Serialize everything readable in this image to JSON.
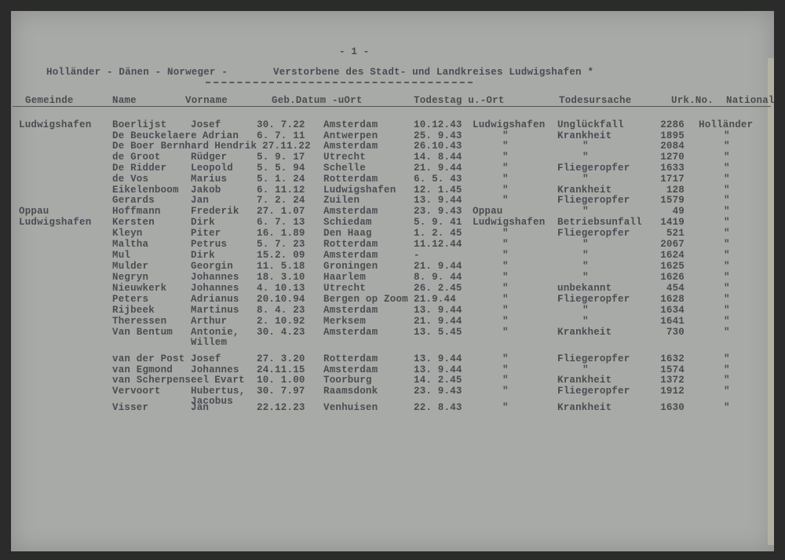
{
  "document": {
    "page_number": "- 1 -",
    "title_left": "Holländer - Dänen - Norweger -",
    "title_right": "Verstorbene des Stadt- und Landkreises Ludwigshafen *",
    "columns": [
      "Gemeinde",
      "Name",
      "Vorname",
      "Geb.Datum -uOrt",
      "Todestag u.-Ort",
      "Todesursache",
      "Urk.No.",
      "National"
    ],
    "rows": [
      {
        "gemeinde": "Ludwigshafen",
        "name": "Boerlijst",
        "vorname": "Josef",
        "geb_datum": "30. 7.22",
        "geb_ort": "Amsterdam",
        "tod_datum": "10.12.43",
        "tod_ort": "Ludwigshafen",
        "ursache": "Unglückfall",
        "urk": "2286",
        "national": "Holländer"
      },
      {
        "gemeinde": "",
        "name": "De Beuckelaere",
        "vorname": "Adrian",
        "geb_datum": "6. 7. 11",
        "geb_ort": "Antwerpen",
        "tod_datum": "25. 9.43",
        "tod_ort": "\"",
        "ursache": "Krankheit",
        "urk": "1895",
        "national": "\""
      },
      {
        "gemeinde": "",
        "name": "De Boer Bernhard",
        "vorname": "Hendrik",
        "geb_datum": "27.11.22",
        "geb_ort": "Amsterdam",
        "tod_datum": "26.10.43",
        "tod_ort": "\"",
        "ursache": "\"",
        "urk": "2084",
        "national": "\""
      },
      {
        "gemeinde": "",
        "name": "de Groot",
        "vorname": "Rüdger",
        "geb_datum": "5. 9. 17",
        "geb_ort": "Utrecht",
        "tod_datum": "14. 8.44",
        "tod_ort": "\"",
        "ursache": "\"",
        "urk": "1270",
        "national": "\""
      },
      {
        "gemeinde": "",
        "name": "De Ridder",
        "vorname": "Leopold",
        "geb_datum": "5. 5. 94",
        "geb_ort": "Schelle",
        "tod_datum": "21. 9.44",
        "tod_ort": "\"",
        "ursache": "Fliegeropfer",
        "urk": "1633",
        "national": "\""
      },
      {
        "gemeinde": "",
        "name": "de Vos",
        "vorname": "Marius",
        "geb_datum": "5. 1. 24",
        "geb_ort": "Rotterdam",
        "tod_datum": "6. 5. 43",
        "tod_ort": "\"",
        "ursache": "\"",
        "urk": "1717",
        "national": "\""
      },
      {
        "gemeinde": "",
        "name": "Eikelenboom",
        "vorname": "Jakob",
        "geb_datum": "6. 11.12",
        "geb_ort": "Ludwigshafen",
        "tod_datum": "12. 1.45",
        "tod_ort": "\"",
        "ursache": "Krankheit",
        "urk": "128",
        "national": "\""
      },
      {
        "gemeinde": "",
        "name": "Gerards",
        "vorname": "Jan",
        "geb_datum": "7. 2. 24",
        "geb_ort": "Zuilen",
        "tod_datum": "13. 9.44",
        "tod_ort": "\"",
        "ursache": "Fliegeropfer",
        "urk": "1579",
        "national": "\""
      },
      {
        "gemeinde": "Oppau",
        "name": "Hoffmann",
        "vorname": "Frederik",
        "geb_datum": "27. 1.07",
        "geb_ort": "Amsterdam",
        "tod_datum": "23. 9.43",
        "tod_ort": "Oppau",
        "ursache": "\"",
        "urk": "49",
        "national": "\""
      },
      {
        "gemeinde": "Ludwigshafen",
        "name": "Kersten",
        "vorname": "Dirk",
        "geb_datum": "6. 7. 13",
        "geb_ort": "Schiedam",
        "tod_datum": "5. 9. 41",
        "tod_ort": "Ludwigshafen",
        "ursache": "Betriebsunfall",
        "urk": "1419",
        "national": "\""
      },
      {
        "gemeinde": "",
        "name": "Kleyn",
        "vorname": "Piter",
        "geb_datum": "16. 1.89",
        "geb_ort": "Den Haag",
        "tod_datum": "1. 2. 45",
        "tod_ort": "\"",
        "ursache": "Fliegeropfer",
        "urk": "521",
        "national": "\""
      },
      {
        "gemeinde": "",
        "name": "Maltha",
        "vorname": "Petrus",
        "geb_datum": "5. 7. 23",
        "geb_ort": "Rotterdam",
        "tod_datum": "11.12.44",
        "tod_ort": "\"",
        "ursache": "\"",
        "urk": "2067",
        "national": "\""
      },
      {
        "gemeinde": "",
        "name": "Mul",
        "vorname": "Dirk",
        "geb_datum": "15.2. 09",
        "geb_ort": "Amsterdam",
        "tod_datum": "-",
        "tod_ort": "\"",
        "ursache": "\"",
        "urk": "1624",
        "national": "\""
      },
      {
        "gemeinde": "",
        "name": "Mulder",
        "vorname": "Georgin",
        "geb_datum": "11. 5.18",
        "geb_ort": "Groningen",
        "tod_datum": "21. 9.44",
        "tod_ort": "\"",
        "ursache": "\"",
        "urk": "1625",
        "national": "\""
      },
      {
        "gemeinde": "",
        "name": "Negryn",
        "vorname": "Johannes",
        "geb_datum": "18. 3.10",
        "geb_ort": "Haarlem",
        "tod_datum": "8. 9. 44",
        "tod_ort": "\"",
        "ursache": "\"",
        "urk": "1626",
        "national": "\""
      },
      {
        "gemeinde": "",
        "name": "Nieuwkerk",
        "vorname": "Johannes",
        "geb_datum": "4. 10.13",
        "geb_ort": "Utrecht",
        "tod_datum": "26. 2.45",
        "tod_ort": "\"",
        "ursache": "unbekannt",
        "urk": "454",
        "national": "\""
      },
      {
        "gemeinde": "",
        "name": "Peters",
        "vorname": "Adrianus",
        "geb_datum": "20.10.94",
        "geb_ort": "Bergen op Zoom",
        "tod_datum": "21.9.44",
        "tod_ort": "\"",
        "ursache": "Fliegeropfer",
        "urk": "1628",
        "national": "\""
      },
      {
        "gemeinde": "",
        "name": "Rijbeek",
        "vorname": "Martinus",
        "geb_datum": "8. 4. 23",
        "geb_ort": "Amsterdam",
        "tod_datum": "13. 9.44",
        "tod_ort": "\"",
        "ursache": "\"",
        "urk": "1634",
        "national": "\""
      },
      {
        "gemeinde": "",
        "name": "Theressen",
        "vorname": "Arthur",
        "geb_datum": "2. 10.92",
        "geb_ort": "Merksem",
        "tod_datum": "21. 9.44",
        "tod_ort": "\"",
        "ursache": "\"",
        "urk": "1641",
        "national": "\""
      },
      {
        "gemeinde": "",
        "name": "Van Bentum",
        "vorname": "Antonie,\nWillem",
        "geb_datum": "30. 4.23",
        "geb_ort": "Amsterdam",
        "tod_datum": "13. 5.45",
        "tod_ort": "\"",
        "ursache": "Krankheit",
        "urk": "730",
        "national": "\""
      },
      {
        "gemeinde": "",
        "name": "van der Post",
        "vorname": "Josef",
        "geb_datum": "27. 3.20",
        "geb_ort": "Rotterdam",
        "tod_datum": "13. 9.44",
        "tod_ort": "\"",
        "ursache": "Fliegeropfer",
        "urk": "1632",
        "national": "\""
      },
      {
        "gemeinde": "",
        "name": "van Egmond",
        "vorname": "Johannes",
        "geb_datum": "24.11.15",
        "geb_ort": "Amsterdam",
        "tod_datum": "13. 9.44",
        "tod_ort": "\"",
        "ursache": "\"",
        "urk": "1574",
        "national": "\""
      },
      {
        "gemeinde": "",
        "name": "van Scherpenseel",
        "vorname": "Evart",
        "geb_datum": "10. 1.00",
        "geb_ort": "Toorburg",
        "tod_datum": "14. 2.45",
        "tod_ort": "\"",
        "ursache": "Krankheit",
        "urk": "1372",
        "national": "\""
      },
      {
        "gemeinde": "",
        "name": "Vervoort",
        "vorname": "Hubertus,\nJacobus",
        "geb_datum": "30. 7.97",
        "geb_ort": "Raamsdonk",
        "tod_datum": "23. 9.43",
        "tod_ort": "\"",
        "ursache": "Fliegeropfer",
        "urk": "1912",
        "national": "\""
      },
      {
        "gemeinde": "",
        "name": "Visser",
        "vorname": "Jan",
        "geb_datum": "22.12.23",
        "geb_ort": "Venhuisen",
        "tod_datum": "22. 8.43",
        "tod_ort": "\"",
        "ursache": "Krankheit",
        "urk": "1630",
        "national": "\""
      }
    ]
  }
}
